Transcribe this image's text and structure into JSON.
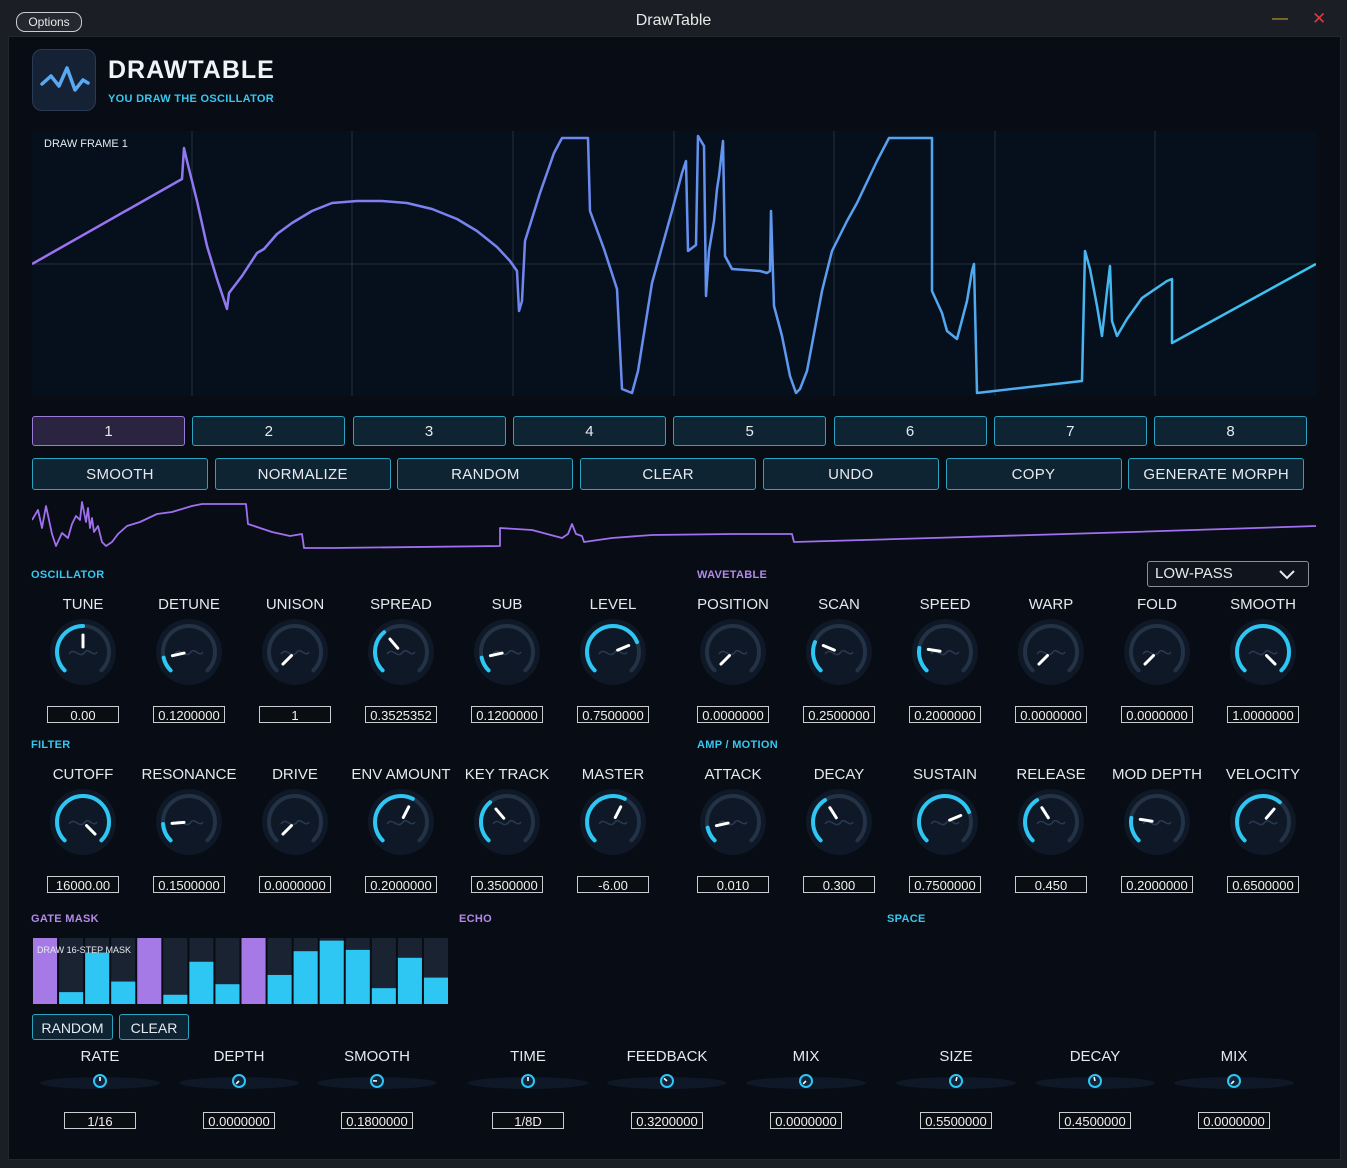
{
  "window": {
    "options_label": "Options",
    "title": "DrawTable",
    "minimize_glyph": "—",
    "close_glyph": "✕"
  },
  "header": {
    "brand": "DRAWTABLE",
    "tagline": "YOU DRAW THE OSCILLATOR",
    "logo_icon": "wave-logo-icon"
  },
  "draw": {
    "label": "DRAW FRAME 1"
  },
  "frames": [
    {
      "label": "1",
      "active": true
    },
    {
      "label": "2"
    },
    {
      "label": "3"
    },
    {
      "label": "4"
    },
    {
      "label": "5"
    },
    {
      "label": "6"
    },
    {
      "label": "7"
    },
    {
      "label": "8"
    }
  ],
  "actions": [
    "SMOOTH",
    "NORMALIZE",
    "RANDOM",
    "CLEAR",
    "UNDO",
    "COPY",
    "GENERATE MORPH"
  ],
  "sections": {
    "oscillator": "OSCILLATOR",
    "wavetable": "WAVETABLE",
    "filter": "FILTER",
    "amp": "AMP / MOTION",
    "gate": "GATE MASK",
    "echo": "ECHO",
    "space": "SPACE"
  },
  "filter_type": {
    "selected": "LOW-PASS"
  },
  "knob_rows": [
    {
      "name": "oscillator-wavetable",
      "knobs": [
        {
          "label": "TUNE",
          "value": "0.00",
          "level": 0.5
        },
        {
          "label": "DETUNE",
          "value": "0.1200000",
          "level": 0.12
        },
        {
          "label": "UNISON",
          "value": "1",
          "level": 0.0
        },
        {
          "label": "SPREAD",
          "value": "0.3525352",
          "level": 0.35
        },
        {
          "label": "SUB",
          "value": "0.1200000",
          "level": 0.12
        },
        {
          "label": "LEVEL",
          "value": "0.7500000",
          "level": 0.75
        },
        {
          "label": "POSITION",
          "value": "0.0000000",
          "level": 0.0
        },
        {
          "label": "SCAN",
          "value": "0.2500000",
          "level": 0.25
        },
        {
          "label": "SPEED",
          "value": "0.2000000",
          "level": 0.2
        },
        {
          "label": "WARP",
          "value": "0.0000000",
          "level": 0.0
        },
        {
          "label": "FOLD",
          "value": "0.0000000",
          "level": 0.0
        },
        {
          "label": "SMOOTH",
          "value": "1.0000000",
          "level": 1.0
        }
      ]
    },
    {
      "name": "filter-amp",
      "knobs": [
        {
          "label": "CUTOFF",
          "value": "16000.00",
          "level": 1.0
        },
        {
          "label": "RESONANCE",
          "value": "0.1500000",
          "level": 0.15
        },
        {
          "label": "DRIVE",
          "value": "0.0000000",
          "level": 0.0
        },
        {
          "label": "ENV AMOUNT",
          "value": "0.2000000",
          "level": 0.6
        },
        {
          "label": "KEY TRACK",
          "value": "0.3500000",
          "level": 0.35
        },
        {
          "label": "MASTER",
          "value": "-6.00",
          "level": 0.6
        },
        {
          "label": "ATTACK",
          "value": "0.010",
          "level": 0.12
        },
        {
          "label": "DECAY",
          "value": "0.300",
          "level": 0.38
        },
        {
          "label": "SUSTAIN",
          "value": "0.7500000",
          "level": 0.75
        },
        {
          "label": "RELEASE",
          "value": "0.450",
          "level": 0.38
        },
        {
          "label": "MOD DEPTH",
          "value": "0.2000000",
          "level": 0.2
        },
        {
          "label": "VELOCITY",
          "value": "0.6500000",
          "level": 0.65
        }
      ]
    }
  ],
  "gate": {
    "label": "DRAW 16-STEP MASK",
    "steps": [
      1.0,
      0.18,
      0.78,
      0.34,
      1.0,
      0.14,
      0.64,
      0.3,
      1.0,
      0.44,
      0.8,
      0.96,
      0.82,
      0.24,
      0.7,
      0.4
    ],
    "random_label": "RANDOM",
    "clear_label": "CLEAR"
  },
  "small_knobs": [
    {
      "label": "RATE",
      "value": "1/16",
      "level": 0.5
    },
    {
      "label": "DEPTH",
      "value": "0.0000000",
      "level": 0.0
    },
    {
      "label": "SMOOTH",
      "value": "0.1800000",
      "level": 0.18
    },
    {
      "label": "TIME",
      "value": "1/8D",
      "level": 0.5
    },
    {
      "label": "FEEDBACK",
      "value": "0.3200000",
      "level": 0.32
    },
    {
      "label": "MIX",
      "value": "0.0000000",
      "level": 0.0
    },
    {
      "label": "SIZE",
      "value": "0.5500000",
      "level": 0.55
    },
    {
      "label": "DECAY",
      "value": "0.4500000",
      "level": 0.45
    },
    {
      "label": "MIX",
      "value": "0.0000000",
      "level": 0.0
    }
  ]
}
